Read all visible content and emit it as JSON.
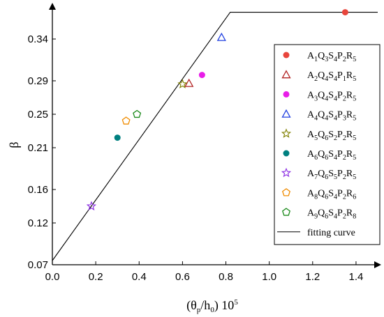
{
  "chart_data": {
    "type": "scatter",
    "title": "",
    "xlabel": "(θp/h0) 10^5",
    "ylabel": "β",
    "xlim": [
      0.0,
      1.5
    ],
    "ylim": [
      0.07,
      0.38
    ],
    "x_ticks": [
      "0.0",
      "0.2",
      "0.4",
      "0.6",
      "0.8",
      "1.0",
      "1.2",
      "1.4"
    ],
    "y_ticks": [
      "0.07",
      "0.12",
      "0.16",
      "0.21",
      "0.25",
      "0.29",
      "0.34"
    ],
    "grid": false,
    "legend_position": "right",
    "series": [
      {
        "name": "A1Q3S4P2R5",
        "marker": "circle-filled",
        "color": "#e8453c",
        "x": [
          1.35
        ],
        "y": [
          0.372
        ]
      },
      {
        "name": "A2Q4S4P1R5",
        "marker": "triangle-open",
        "color": "#b22222",
        "x": [
          0.63
        ],
        "y": [
          0.287
        ]
      },
      {
        "name": "A3Q4S4P2R5",
        "marker": "circle-filled",
        "color": "#e81ee8",
        "x": [
          0.69
        ],
        "y": [
          0.297
        ]
      },
      {
        "name": "A4Q4S4P3R5",
        "marker": "triangle-open",
        "color": "#1f3fe0",
        "x": [
          0.78
        ],
        "y": [
          0.342
        ]
      },
      {
        "name": "A5Q6S2P2R5",
        "marker": "star-open",
        "color": "#808000",
        "x": [
          0.6
        ],
        "y": [
          0.286
        ]
      },
      {
        "name": "A6Q6S4P2R5",
        "marker": "circle-filled",
        "color": "#008080",
        "x": [
          0.3
        ],
        "y": [
          0.222
        ]
      },
      {
        "name": "A7Q6S5P2R5",
        "marker": "star-open",
        "color": "#8a2be2",
        "x": [
          0.18
        ],
        "y": [
          0.14
        ]
      },
      {
        "name": "A8Q6S4P2R6",
        "marker": "pentagon-open",
        "color": "#f08c00",
        "x": [
          0.34
        ],
        "y": [
          0.242
        ]
      },
      {
        "name": "A9Q6S4P2R8",
        "marker": "pentagon-open",
        "color": "#1a8a1a",
        "x": [
          0.39
        ],
        "y": [
          0.25
        ]
      },
      {
        "name": "fitting curve",
        "marker": "line",
        "color": "#000000",
        "x": [
          0.0,
          0.82,
          1.5
        ],
        "y": [
          0.075,
          0.372,
          0.372
        ]
      }
    ],
    "legend_labels": [
      {
        "base": [
          "A",
          "Q",
          "S",
          "P",
          "R"
        ],
        "subs": [
          "1",
          "3",
          "4",
          "2",
          "5"
        ]
      },
      {
        "base": [
          "A",
          "Q",
          "S",
          "P",
          "R"
        ],
        "subs": [
          "2",
          "4",
          "4",
          "1",
          "5"
        ]
      },
      {
        "base": [
          "A",
          "Q",
          "S",
          "P",
          "R"
        ],
        "subs": [
          "3",
          "4",
          "4",
          "2",
          "5"
        ]
      },
      {
        "base": [
          "A",
          "Q",
          "S",
          "P",
          "R"
        ],
        "subs": [
          "4",
          "4",
          "4",
          "3",
          "5"
        ]
      },
      {
        "base": [
          "A",
          "Q",
          "S",
          "P",
          "R"
        ],
        "subs": [
          "5",
          "6",
          "2",
          "2",
          "5"
        ]
      },
      {
        "base": [
          "A",
          "Q",
          "S",
          "P",
          "R"
        ],
        "subs": [
          "6",
          "6",
          "4",
          "2",
          "5"
        ]
      },
      {
        "base": [
          "A",
          "Q",
          "S",
          "P",
          "R"
        ],
        "subs": [
          "7",
          "6",
          "5",
          "2",
          "5"
        ]
      },
      {
        "base": [
          "A",
          "Q",
          "S",
          "P",
          "R"
        ],
        "subs": [
          "8",
          "6",
          "4",
          "2",
          "6"
        ]
      },
      {
        "base": [
          "A",
          "Q",
          "S",
          "P",
          "R"
        ],
        "subs": [
          "9",
          "6",
          "4",
          "2",
          "8"
        ]
      },
      {
        "plain": "fitting curve"
      }
    ]
  }
}
